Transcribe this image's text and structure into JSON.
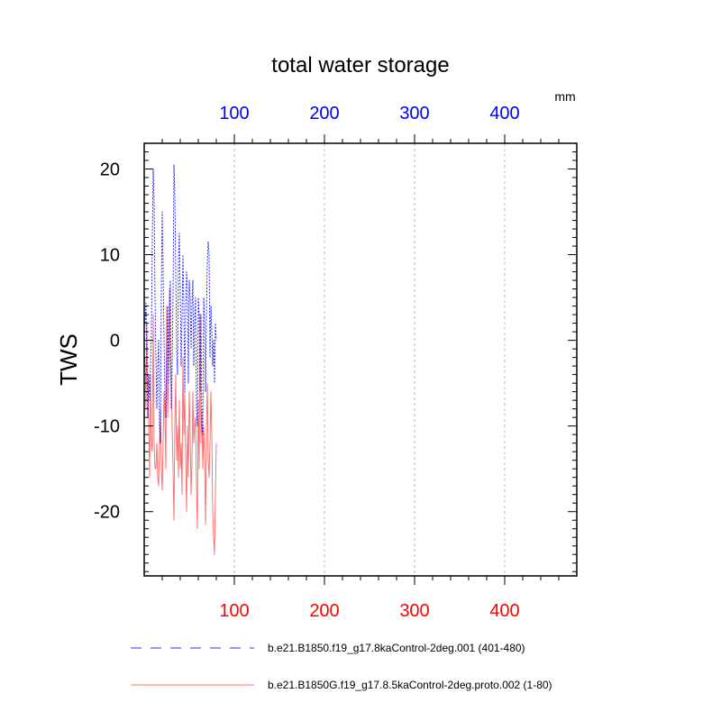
{
  "chart_data": {
    "type": "line",
    "title": "total water storage",
    "units_label": "mm",
    "ylabel": "TWS",
    "ylim": [
      -27.5,
      23
    ],
    "xlim": [
      0,
      480
    ],
    "yticks": [
      20,
      10,
      0,
      -10,
      -20
    ],
    "xticks_top": [
      100,
      200,
      300,
      400
    ],
    "xticks_bottom": [
      100,
      200,
      300,
      400
    ],
    "colors": {
      "top_axis": "#0000ff",
      "bottom_axis": "#ff0000",
      "grid": "#bbbbbb"
    },
    "series": [
      {
        "name": "b.e21.B1850.f19_g17.8kaControl-2deg.001 (401-480)",
        "color": "#0000ff",
        "dash": "dashed",
        "x": [
          1,
          2,
          3,
          4,
          5,
          6,
          7,
          8,
          9,
          10,
          11,
          12,
          13,
          14,
          15,
          16,
          17,
          18,
          19,
          20,
          21,
          22,
          23,
          24,
          25,
          26,
          27,
          28,
          29,
          30,
          31,
          32,
          33,
          34,
          35,
          36,
          37,
          38,
          39,
          40,
          41,
          42,
          43,
          44,
          45,
          46,
          47,
          48,
          49,
          50,
          51,
          52,
          53,
          54,
          55,
          56,
          57,
          58,
          59,
          60,
          61,
          62,
          63,
          64,
          65,
          66,
          67,
          68,
          69,
          70,
          71,
          72,
          73,
          74,
          75,
          76,
          77,
          78,
          79,
          80
        ],
        "values": [
          2,
          4.5,
          -3,
          -9,
          -4,
          -7,
          -3,
          1,
          12,
          20,
          16,
          5,
          -2,
          -8,
          -3,
          0,
          -10,
          -12,
          6,
          15,
          8,
          0,
          -6,
          -9,
          -2,
          4,
          -5,
          2,
          7,
          -8,
          -3,
          5,
          20.5,
          17,
          8,
          -1,
          -4,
          9,
          12.5,
          5,
          -3,
          3,
          10,
          4,
          -6,
          3,
          8,
          6,
          -5,
          7,
          5,
          -1,
          4,
          7,
          -3,
          2,
          5,
          -8,
          -10,
          5,
          3,
          -6,
          3,
          -10,
          -11,
          5,
          2,
          -6,
          3,
          9,
          11.5,
          10,
          -2,
          4,
          1,
          -3,
          0,
          -5,
          2,
          0
        ]
      },
      {
        "name": "b.e21.B1850G.f19_g17.8.5kaControl-2deg.proto.002 (1-80)",
        "color": "#ff0000",
        "dash": "solid",
        "x": [
          1,
          2,
          3,
          4,
          5,
          6,
          7,
          8,
          9,
          10,
          11,
          12,
          13,
          14,
          15,
          16,
          17,
          18,
          19,
          20,
          21,
          22,
          23,
          24,
          25,
          26,
          27,
          28,
          29,
          30,
          31,
          32,
          33,
          34,
          35,
          36,
          37,
          38,
          39,
          40,
          41,
          42,
          43,
          44,
          45,
          46,
          47,
          48,
          49,
          50,
          51,
          52,
          53,
          54,
          55,
          56,
          57,
          58,
          59,
          60,
          61,
          62,
          63,
          64,
          65,
          66,
          67,
          68,
          69,
          70,
          71,
          72,
          73,
          74,
          75,
          76,
          77,
          78,
          79,
          80
        ],
        "values": [
          -2,
          -8,
          2,
          -5,
          -10,
          -16,
          -4,
          -12,
          -13,
          3,
          -12,
          -15,
          -15,
          -12,
          -16,
          -17,
          -12,
          -8,
          -15,
          -17.5,
          -12,
          -6,
          -9,
          -15,
          4,
          -9,
          -4,
          6,
          -2,
          -5,
          -10,
          -15,
          -21,
          -10,
          -4,
          -14,
          -10,
          -16,
          -7,
          -15,
          -12,
          -18,
          -2,
          -11,
          -6,
          -14,
          -20,
          -10,
          -16,
          -6,
          -11,
          -18,
          -14,
          -6,
          -12,
          -10,
          -9,
          -17,
          -22,
          -7,
          -15,
          3,
          -12,
          -8,
          -15,
          -10,
          -14,
          -21.5,
          -11,
          -5,
          -14,
          -16,
          -12,
          -6,
          -11,
          -20,
          -23,
          -25,
          -18,
          -12
        ]
      }
    ]
  }
}
